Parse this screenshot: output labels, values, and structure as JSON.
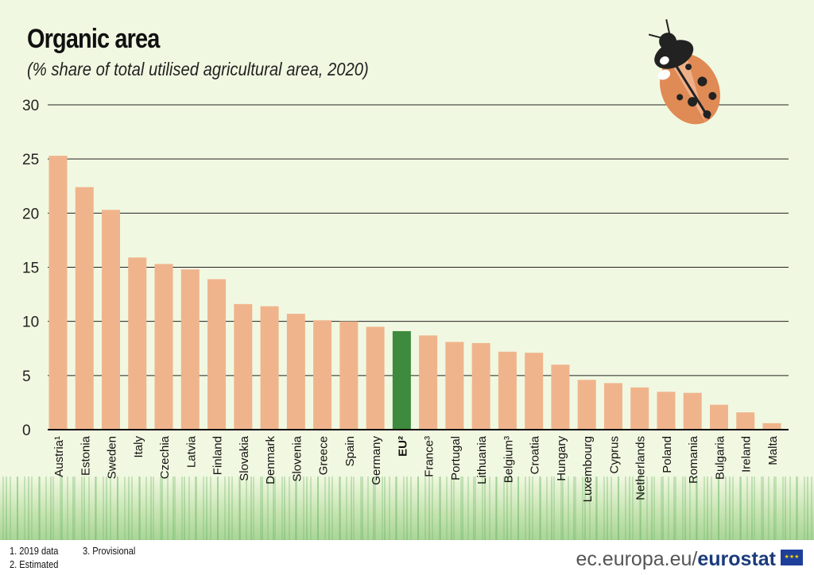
{
  "header": {
    "title": "Organic area",
    "subtitle": "(% share of total utilised agricultural area, 2020)"
  },
  "footer": {
    "notes": [
      "1. 2019 data",
      "2. Estimated",
      "3. Provisional"
    ],
    "brand_prefix": "ec.europa.eu/",
    "brand_name": "eurostat"
  },
  "colors": {
    "bar": "#f0b48c",
    "highlight": "#3e8a3e",
    "grid": "#222222"
  },
  "chart_data": {
    "type": "bar",
    "title": "Organic area",
    "subtitle": "(% share of total utilised agricultural area, 2020)",
    "xlabel": "",
    "ylabel": "",
    "ylim": [
      0,
      30
    ],
    "yticks": [
      0,
      5,
      10,
      15,
      20,
      25,
      30
    ],
    "grid": true,
    "categories": [
      "Austria¹",
      "Estonia",
      "Sweden",
      "Italy",
      "Czechia",
      "Latvia",
      "Finland",
      "Slovakia",
      "Denmark",
      "Slovenia",
      "Greece",
      "Spain",
      "Germany",
      "EU²",
      "France³",
      "Portugal",
      "Lithuania",
      "Belgium³",
      "Croatia",
      "Hungary",
      "Luxembourg",
      "Cyprus",
      "Netherlands",
      "Poland",
      "Romania",
      "Bulgaria",
      "Ireland",
      "Malta"
    ],
    "values": [
      25.3,
      22.4,
      20.3,
      15.9,
      15.3,
      14.8,
      13.9,
      11.6,
      11.4,
      10.7,
      10.1,
      10.0,
      9.5,
      9.1,
      8.7,
      8.1,
      8.0,
      7.2,
      7.1,
      6.0,
      4.6,
      4.3,
      3.9,
      3.5,
      3.4,
      2.3,
      1.6,
      0.6
    ],
    "highlight": "EU²"
  }
}
